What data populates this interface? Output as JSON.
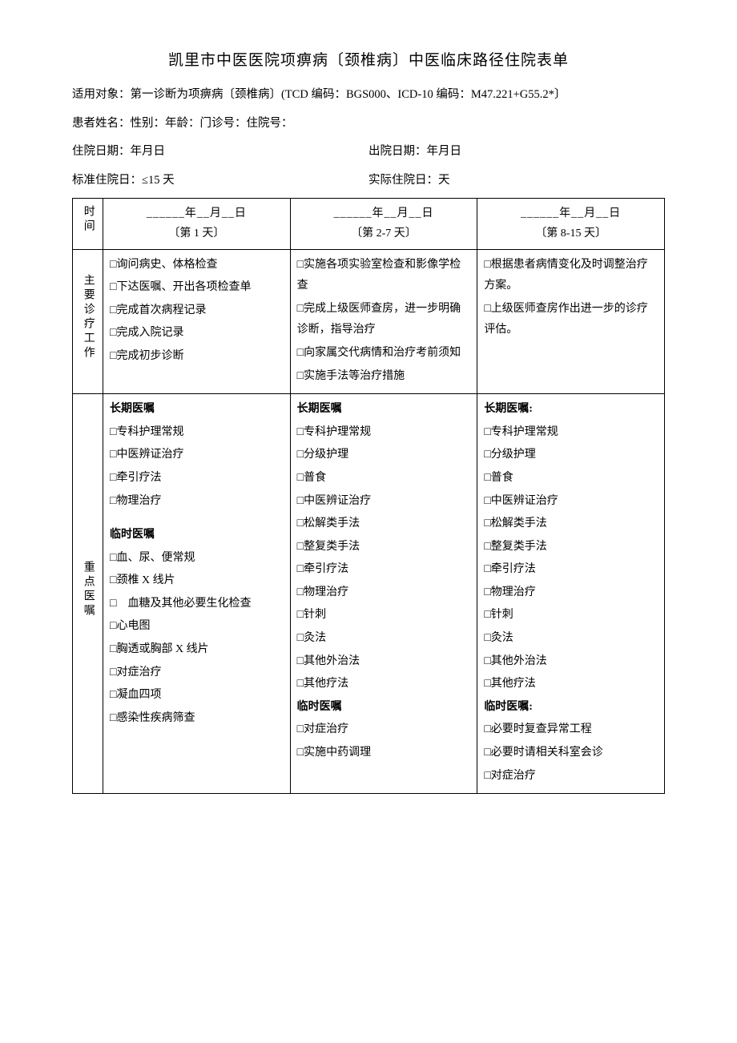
{
  "title": "凯里市中医医院项痹病〔颈椎病〕中医临床路径住院表单",
  "meta": {
    "applicable": "适用对象：第一诊断为项痹病〔颈椎病〕(TCD 编码：BGS000、ICD-10 编码：M47.221+G55.2*〕",
    "patient": "患者姓名：性别：年龄：门诊号：住院号：",
    "admit_left": "住院日期：年月日",
    "admit_right": "出院日期：年月日",
    "std_left": "标准住院日：≤15 天",
    "std_right": "实际住院日：天"
  },
  "table": {
    "head_time": "时间",
    "cols": [
      {
        "date": "______年__月__日",
        "phase": "〔第 1 天〕"
      },
      {
        "date": "______年__月__日",
        "phase": "〔第 2-7 天〕"
      },
      {
        "date": "______年__月__日",
        "phase": "〔第 8-15 天〕"
      }
    ],
    "row1_head": "主要诊疗工作",
    "row1": [
      [
        "□询问病史、体格检查",
        "□下达医嘱、开出各项检查单",
        "□完成首次病程记录",
        "□完成入院记录",
        "□完成初步诊断"
      ],
      [
        "□实施各项实验室检查和影像学检查",
        "□完成上级医师查房，进一步明确诊断，指导治疗",
        "□向家属交代病情和治疗考前须知",
        "□实施手法等治疗措施"
      ],
      [
        "□根据患者病情变化及时调整治疗方案。",
        "□上级医师查房作出进一步的诊疗评估。"
      ]
    ],
    "row2_head": "重点医嘱",
    "row2": [
      {
        "long_title": "长期医嘱",
        "long": [
          "□专科护理常规",
          "□中医辨证治疗",
          "□牵引疗法",
          "□物理治疗"
        ],
        "temp_title": "临时医嘱",
        "temp": [
          "□血、尿、便常规",
          "□颈椎 X 线片",
          "□　血糖及其他必要生化检查",
          "□心电图",
          "□胸透或胸部 X 线片",
          "□对症治疗",
          "□凝血四项",
          "□感染性疾病筛查"
        ]
      },
      {
        "long_title": "长期医嘱",
        "long": [
          "□专科护理常规",
          "□分级护理",
          "□普食",
          "□中医辨证治疗",
          "□松解类手法",
          "□整复类手法",
          "□牵引疗法",
          "□物理治疗",
          "□针刺",
          "□灸法",
          "□其他外治法",
          "□其他疗法"
        ],
        "temp_title": "临时医嘱",
        "temp": [
          "□对症治疗",
          "□实施中药调理"
        ]
      },
      {
        "long_title": "长期医嘱:",
        "long": [
          "□专科护理常规",
          "□分级护理",
          "□普食",
          "□中医辨证治疗",
          "□松解类手法",
          "□整复类手法",
          "□牵引疗法",
          "□物理治疗",
          "□针刺",
          "□灸法",
          "□其他外治法",
          "□其他疗法"
        ],
        "temp_title": "临时医嘱:",
        "temp": [
          "□必要时复查异常工程",
          "□必要时请相关科室会诊",
          "□对症治疗"
        ]
      }
    ]
  }
}
